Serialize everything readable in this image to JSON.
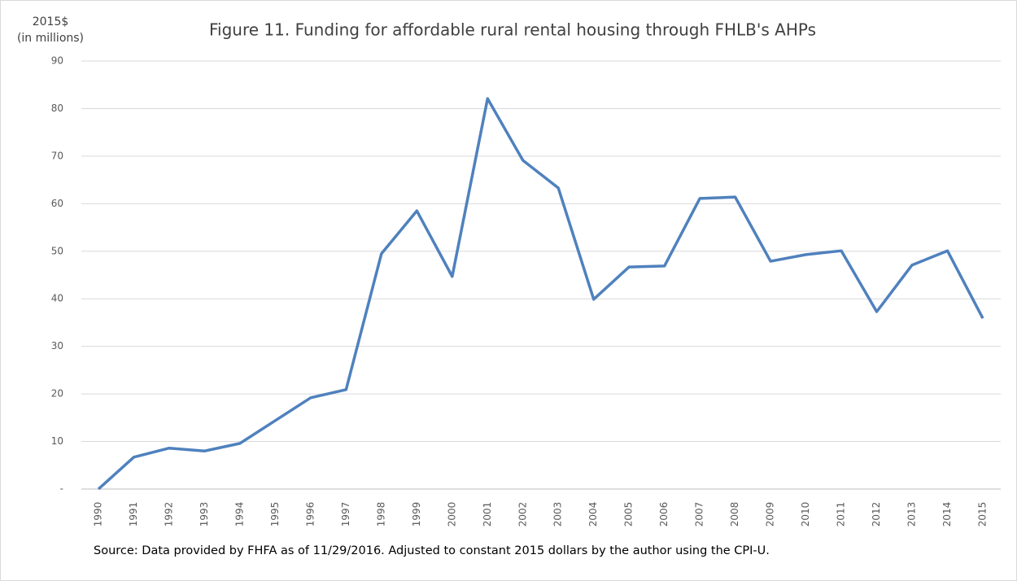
{
  "chart_data": {
    "type": "line",
    "title": "Figure 11. Funding for affordable rural rental housing through FHLB's AHPs",
    "ylabel": [
      "2015$",
      "(in millions)"
    ],
    "note": "Source: Data provided by FHFA as of 11/29/2016. Adjusted to constant 2015 dollars by the author using the CPI-U.",
    "categories": [
      "1990",
      "1991",
      "1992",
      "1993",
      "1994",
      "1995",
      "1996",
      "1997",
      "1998",
      "1999",
      "2000",
      "2001",
      "2002",
      "2003",
      "2004",
      "2005",
      "2006",
      "2007",
      "2008",
      "2009",
      "2010",
      "2011",
      "2012",
      "2013",
      "2014",
      "2015"
    ],
    "series": [
      {
        "name": "Funding",
        "color": "#4f81bd",
        "values": [
          0,
          6.7,
          8.6,
          8.0,
          9.6,
          14.4,
          19.2,
          20.9,
          49.5,
          58.5,
          44.7,
          82.1,
          69.1,
          63.3,
          39.9,
          46.7,
          46.9,
          61.1,
          61.4,
          47.9,
          49.3,
          50.1,
          37.3,
          47.1,
          50.1,
          35.9
        ]
      }
    ],
    "ylim": [
      0,
      90
    ],
    "yticks": [
      {
        "value": 0,
        "label": "-"
      },
      10,
      20,
      30,
      40,
      50,
      60,
      70,
      80,
      90
    ],
    "grid": true
  }
}
